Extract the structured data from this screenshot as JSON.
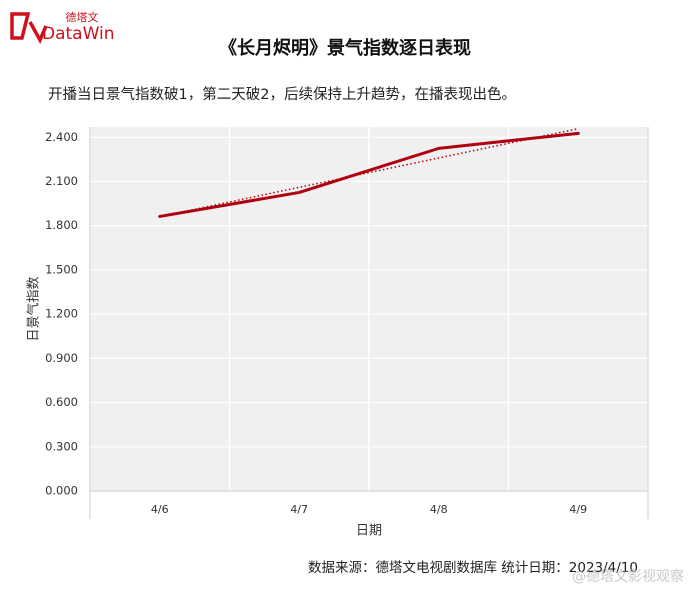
{
  "logo": {
    "brand_cn": "德塔文",
    "brand_en": "DataWin"
  },
  "chart_data": {
    "type": "line",
    "title": "《长月烬明》景气指数逐日表现",
    "subtitle": "开播当日景气指数破1，第二天破2，后续保持上升趋势，在播表现出色。",
    "x_label": "日期",
    "y_label": "日景气指数",
    "categories": [
      "4/6",
      "4/7",
      "4/8",
      "4/9"
    ],
    "series": [
      {
        "name": "日景气指数",
        "color": "#b00010",
        "values": [
          1.863,
          2.026,
          2.325,
          2.427
        ]
      }
    ],
    "trendline": true,
    "ylim": [
      0,
      2.47
    ],
    "yticks": [
      {
        "value": 0,
        "label": "0.000"
      },
      {
        "value": 0.3,
        "label": "0.300"
      },
      {
        "value": 0.6,
        "label": "0.600"
      },
      {
        "value": 0.9,
        "label": "0.900"
      },
      {
        "value": 1.2,
        "label": "1.200"
      },
      {
        "value": 1.5,
        "label": "1.500"
      },
      {
        "value": 1.8,
        "label": "1.800"
      },
      {
        "value": 2.1,
        "label": "2.100"
      },
      {
        "value": 2.4,
        "label": "2.400"
      }
    ],
    "grid": true,
    "source": "数据来源：德塔文电视剧数据库  统计日期：2023/4/10",
    "watermark": "@德塔文影视观察"
  }
}
